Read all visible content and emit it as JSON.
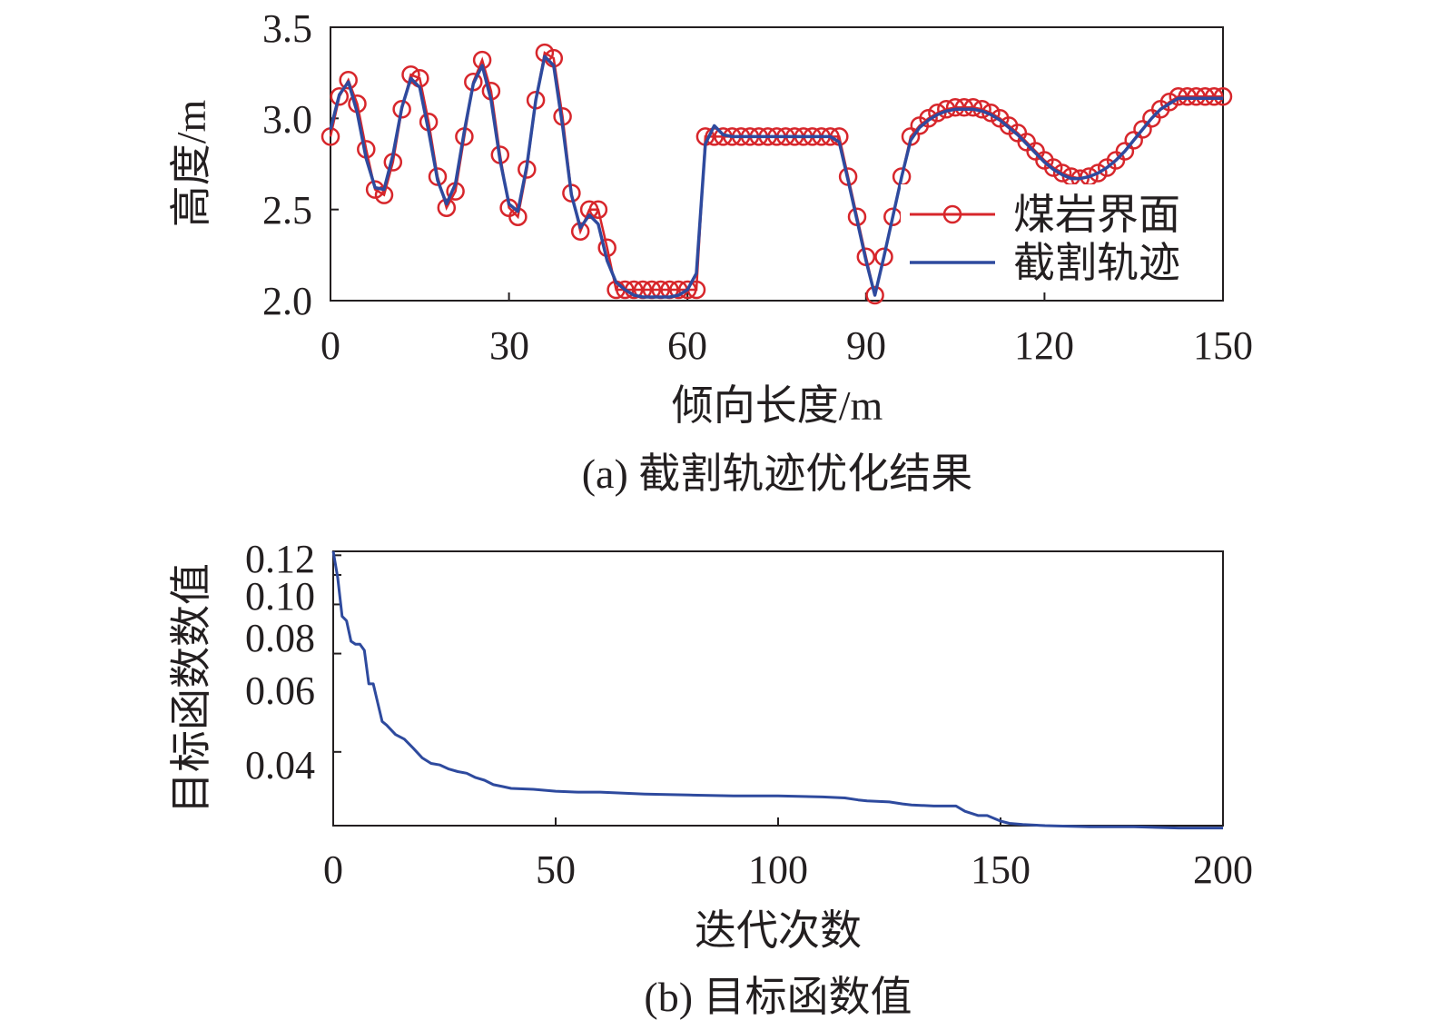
{
  "colors": {
    "interface": "#d7262b",
    "trajectory": "#2e4a9e",
    "axis": "#231f20"
  },
  "chart_data": [
    {
      "type": "line",
      "caption": "(a) 截割轨迹优化结果",
      "xlabel": "倾向长度/m",
      "ylabel": "高度/m",
      "xlim": [
        0,
        150
      ],
      "ylim": [
        2.0,
        3.5
      ],
      "xticks": [
        "0",
        "30",
        "60",
        "90",
        "120",
        "150"
      ],
      "yticks": [
        "2.0",
        "2.5",
        "3.0",
        "3.5"
      ],
      "legend": "right-middle",
      "series": [
        {
          "name": "煤岩界面",
          "marker": "circle",
          "x": [
            0,
            1.5,
            3,
            4.5,
            6,
            7.5,
            9,
            10.5,
            12,
            13.5,
            15,
            16.5,
            18,
            19.5,
            21,
            22.5,
            24,
            25.5,
            27,
            28.5,
            30,
            31.5,
            33,
            34.5,
            36,
            37.5,
            39,
            40.5,
            42,
            43.5,
            45,
            46.5,
            48,
            49.5,
            51,
            52.5,
            54,
            55.5,
            57,
            58.5,
            60,
            61.5,
            63,
            64.5,
            66,
            67.5,
            69,
            70.5,
            72,
            73.5,
            75,
            76.5,
            78,
            79.5,
            81,
            82.5,
            84,
            85.5,
            87,
            88.5,
            90,
            91.5,
            93,
            94.5,
            96,
            97.5,
            99,
            100.5,
            102,
            103.5,
            105,
            106.5,
            108,
            109.5,
            111,
            112.5,
            114,
            115.5,
            117,
            118.5,
            120,
            121.5,
            123,
            124.5,
            126,
            127.5,
            129,
            130.5,
            132,
            133.5,
            135,
            136.5,
            138,
            139.5,
            141,
            142.5,
            144,
            145.5,
            147,
            148.5,
            150
          ],
          "y": [
            2.9,
            3.12,
            3.21,
            3.08,
            2.83,
            2.61,
            2.58,
            2.76,
            3.05,
            3.24,
            3.22,
            2.98,
            2.68,
            2.51,
            2.6,
            2.9,
            3.2,
            3.32,
            3.15,
            2.8,
            2.51,
            2.46,
            2.72,
            3.1,
            3.36,
            3.33,
            3.01,
            2.59,
            2.38,
            2.5,
            2.5,
            2.29,
            2.06,
            2.06,
            2.06,
            2.06,
            2.06,
            2.06,
            2.06,
            2.06,
            2.06,
            2.06,
            2.9,
            2.9,
            2.9,
            2.9,
            2.9,
            2.9,
            2.9,
            2.9,
            2.9,
            2.9,
            2.9,
            2.9,
            2.9,
            2.9,
            2.9,
            2.9,
            2.68,
            2.46,
            2.24,
            2.03,
            2.24,
            2.46,
            2.68,
            2.9,
            2.96,
            3.0,
            3.03,
            3.05,
            3.06,
            3.06,
            3.06,
            3.05,
            3.03,
            3.0,
            2.96,
            2.92,
            2.87,
            2.82,
            2.77,
            2.73,
            2.7,
            2.68,
            2.67,
            2.68,
            2.7,
            2.73,
            2.77,
            2.82,
            2.88,
            2.94,
            3.0,
            3.05,
            3.09,
            3.12,
            3.12,
            3.12,
            3.12,
            3.12,
            3.12
          ]
        },
        {
          "name": "截割轨迹",
          "x": [
            0,
            1.5,
            3,
            4.5,
            6,
            7.5,
            9,
            10.5,
            12,
            13.5,
            15,
            16.5,
            18,
            19.5,
            21,
            22.5,
            24,
            25.5,
            27,
            28.5,
            30,
            31.5,
            33,
            34.5,
            36,
            37.5,
            39,
            40.5,
            42,
            43.5,
            45,
            46.5,
            48,
            49.5,
            51,
            52.5,
            54,
            55.5,
            57,
            58.5,
            60,
            61.5,
            63,
            64.5,
            66,
            67.5,
            69,
            70.5,
            72,
            73.5,
            75,
            76.5,
            78,
            79.5,
            81,
            82.5,
            84,
            85.5,
            87,
            88.5,
            90,
            91.5,
            93,
            94.5,
            96,
            97.5,
            99,
            100.5,
            102,
            103.5,
            105,
            106.5,
            108,
            109.5,
            111,
            112.5,
            114,
            115.5,
            117,
            118.5,
            120,
            121.5,
            123,
            124.5,
            126,
            127.5,
            129,
            130.5,
            132,
            133.5,
            135,
            136.5,
            138,
            139.5,
            141,
            142.5,
            144,
            145.5,
            147,
            148.5,
            150
          ],
          "y": [
            2.94,
            3.13,
            3.2,
            3.03,
            2.78,
            2.62,
            2.61,
            2.8,
            3.06,
            3.22,
            3.17,
            2.93,
            2.66,
            2.53,
            2.64,
            2.93,
            3.19,
            3.29,
            3.1,
            2.77,
            2.53,
            2.49,
            2.74,
            3.1,
            3.34,
            3.29,
            2.96,
            2.58,
            2.4,
            2.47,
            2.42,
            2.22,
            2.1,
            2.06,
            2.03,
            2.02,
            2.02,
            2.02,
            2.02,
            2.03,
            2.06,
            2.15,
            2.86,
            2.96,
            2.91,
            2.9,
            2.9,
            2.9,
            2.9,
            2.9,
            2.9,
            2.9,
            2.9,
            2.9,
            2.9,
            2.9,
            2.9,
            2.87,
            2.66,
            2.44,
            2.22,
            2.03,
            2.24,
            2.46,
            2.68,
            2.88,
            2.95,
            2.99,
            3.02,
            3.04,
            3.05,
            3.05,
            3.05,
            3.04,
            3.02,
            2.99,
            2.95,
            2.91,
            2.86,
            2.81,
            2.76,
            2.72,
            2.69,
            2.67,
            2.67,
            2.68,
            2.7,
            2.73,
            2.77,
            2.82,
            2.88,
            2.94,
            3.0,
            3.05,
            3.08,
            3.11,
            3.11,
            3.11,
            3.11,
            3.11,
            3.11
          ]
        }
      ]
    },
    {
      "type": "line",
      "caption": "(b) 目标函数值",
      "xlabel": "迭代次数",
      "ylabel": "目标函数数值",
      "xlim": [
        0,
        200
      ],
      "ylim": [
        0.032,
        0.125
      ],
      "yscale": "reciprocal",
      "xticks": [
        "0",
        "50",
        "100",
        "150",
        "200"
      ],
      "yticks": [
        "0.04",
        "0.06",
        "0.08",
        "0.10",
        "0.12"
      ],
      "series": [
        {
          "x": [
            0,
            1,
            2,
            3,
            4,
            5,
            6,
            7,
            8,
            9,
            10,
            11,
            12,
            14,
            16,
            18,
            20,
            22,
            24,
            26,
            28,
            30,
            32,
            34,
            36,
            38,
            40,
            45,
            50,
            55,
            60,
            70,
            80,
            90,
            100,
            110,
            115,
            118,
            120,
            125,
            128,
            130,
            135,
            140,
            142,
            145,
            147,
            150,
            152,
            155,
            160,
            170,
            180,
            190,
            200
          ],
          "y": [
            0.125,
            0.098,
            0.074,
            0.072,
            0.064,
            0.063,
            0.063,
            0.061,
            0.052,
            0.052,
            0.048,
            0.0446,
            0.044,
            0.0425,
            0.0418,
            0.0405,
            0.0392,
            0.0385,
            0.0383,
            0.0378,
            0.0375,
            0.0373,
            0.0368,
            0.0365,
            0.036,
            0.0358,
            0.0356,
            0.0355,
            0.0353,
            0.0352,
            0.0352,
            0.035,
            0.0349,
            0.0348,
            0.0348,
            0.0347,
            0.0346,
            0.0344,
            0.0343,
            0.0342,
            0.034,
            0.0339,
            0.0338,
            0.0338,
            0.0333,
            0.0329,
            0.0329,
            0.0324,
            0.0322,
            0.0321,
            0.032,
            0.0319,
            0.0319,
            0.0318,
            0.0318
          ]
        }
      ]
    }
  ]
}
